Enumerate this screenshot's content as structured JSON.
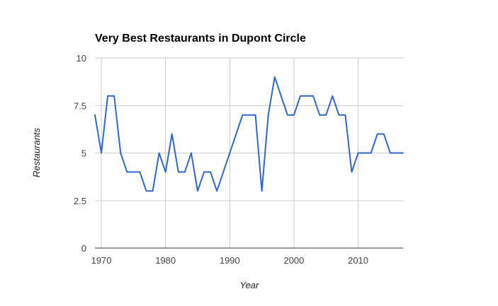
{
  "chart_data": {
    "type": "line",
    "title": "Very Best Restaurants in Dupont Circle",
    "xlabel": "Year",
    "ylabel": "Restaurants",
    "xlim": [
      1969,
      2017
    ],
    "ylim": [
      0,
      10
    ],
    "x_ticks": [
      1970,
      1980,
      1990,
      2000,
      2010
    ],
    "y_ticks": [
      0,
      2.5,
      5,
      7.5,
      10
    ],
    "x_tick_labels": [
      "1970",
      "1980",
      "1990",
      "2000",
      "2010"
    ],
    "y_tick_labels": [
      "0",
      "2.5",
      "5",
      "7.5",
      "10"
    ],
    "grid": true,
    "legend": "none",
    "colors": {
      "series": "#3366cc",
      "grid": "#cccccc",
      "baseline": "#333333"
    },
    "series": [
      {
        "x": [
          1969,
          1970,
          1971,
          1972,
          1973,
          1974,
          1975,
          1976,
          1977,
          1978,
          1979,
          1980,
          1981,
          1982,
          1983,
          1984,
          1985,
          1986,
          1987,
          1988,
          1992,
          1993,
          1994,
          1995,
          1996,
          1997,
          1998,
          1999,
          2000,
          2001,
          2002,
          2003,
          2004,
          2005,
          2006,
          2007,
          2008,
          2009,
          2010,
          2011,
          2012,
          2013,
          2014,
          2015,
          2016,
          2017
        ],
        "values": [
          7,
          5,
          8,
          8,
          5,
          4,
          4,
          4,
          3,
          3,
          5,
          4,
          6,
          4,
          4,
          5,
          3,
          4,
          4,
          3,
          7,
          7,
          7,
          3,
          7,
          9,
          8,
          7,
          7,
          8,
          8,
          8,
          7,
          7,
          8,
          7,
          7,
          4,
          5,
          5,
          5,
          6,
          6,
          5,
          5,
          5
        ]
      }
    ]
  }
}
